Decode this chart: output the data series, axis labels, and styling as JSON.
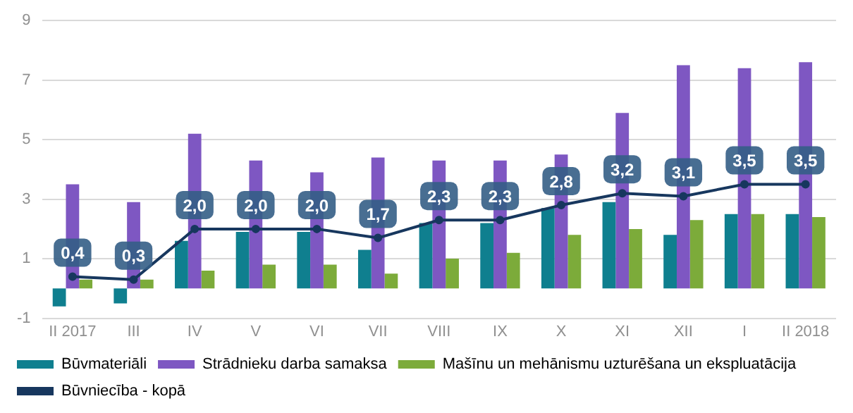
{
  "chart_data": {
    "type": "bar",
    "categories": [
      "II 2017",
      "III",
      "IV",
      "V",
      "VI",
      "VII",
      "VIII",
      "IX",
      "X",
      "XI",
      "XII",
      "I",
      "II 2018"
    ],
    "series": [
      {
        "name": "Būvmateriāli",
        "color": "#0f7f8f",
        "values": [
          -0.6,
          -0.5,
          1.6,
          1.9,
          1.9,
          1.3,
          2.2,
          2.2,
          2.7,
          2.9,
          1.8,
          2.5,
          2.5
        ]
      },
      {
        "name": "Strādnieku darba samaksa",
        "color": "#7e57c2",
        "values": [
          3.5,
          2.9,
          5.2,
          4.3,
          3.9,
          4.4,
          4.3,
          4.3,
          4.5,
          5.9,
          7.5,
          7.4,
          7.6
        ]
      },
      {
        "name": "Mašīnu un mehānismu uzturēšana un ekspluatācija",
        "color": "#7cab3a",
        "values": [
          0.3,
          0.3,
          0.6,
          0.8,
          0.8,
          0.5,
          1.0,
          1.2,
          1.8,
          2.0,
          2.3,
          2.5,
          2.4
        ]
      },
      {
        "name": "Būvniecība - kopā",
        "type": "line",
        "color": "#17375e",
        "marker": "circle",
        "values": [
          0.4,
          0.3,
          2.0,
          2.0,
          2.0,
          1.7,
          2.3,
          2.3,
          2.8,
          3.2,
          3.1,
          3.5,
          3.5
        ],
        "value_labels": [
          "0,4",
          "0,3",
          "2,0",
          "2,0",
          "2,0",
          "1,7",
          "2,3",
          "2,3",
          "2,8",
          "3,2",
          "3,1",
          "3,5",
          "3,5"
        ]
      }
    ],
    "ylim": [
      -1,
      9
    ],
    "yticks": [
      -1,
      1,
      3,
      5,
      7,
      9
    ],
    "grid": "y",
    "legend": "bottom"
  }
}
